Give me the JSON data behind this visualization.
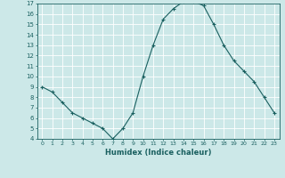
{
  "x": [
    0,
    1,
    2,
    3,
    4,
    5,
    6,
    7,
    8,
    9,
    10,
    11,
    12,
    13,
    14,
    15,
    16,
    17,
    18,
    19,
    20,
    21,
    22,
    23
  ],
  "y": [
    9.0,
    8.5,
    7.5,
    6.5,
    6.0,
    5.5,
    5.0,
    4.0,
    5.0,
    6.5,
    10.0,
    13.0,
    15.5,
    16.5,
    17.2,
    17.2,
    16.8,
    15.0,
    13.0,
    11.5,
    10.5,
    9.5,
    8.0,
    6.5
  ],
  "xlabel": "Humidex (Indice chaleur)",
  "bg_color": "#cce8e8",
  "line_color": "#1a6060",
  "grid_color": "#ffffff",
  "xmin": -0.5,
  "xmax": 23.5,
  "ymin": 4,
  "ymax": 17,
  "yticks": [
    4,
    5,
    6,
    7,
    8,
    9,
    10,
    11,
    12,
    13,
    14,
    15,
    16,
    17
  ],
  "xticks": [
    0,
    1,
    2,
    3,
    4,
    5,
    6,
    7,
    8,
    9,
    10,
    11,
    12,
    13,
    14,
    15,
    16,
    17,
    18,
    19,
    20,
    21,
    22,
    23
  ]
}
